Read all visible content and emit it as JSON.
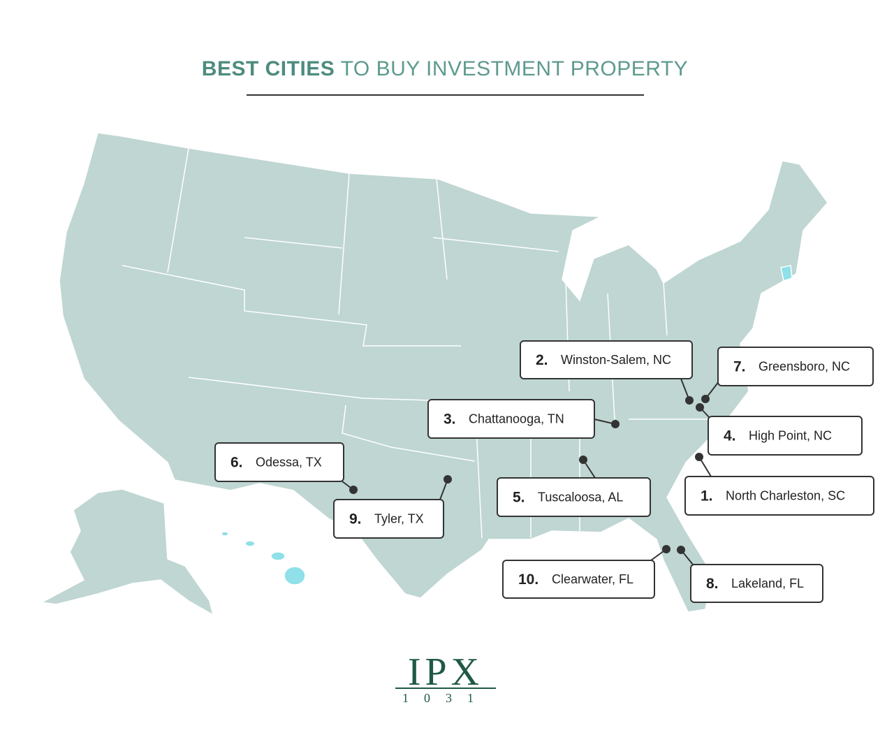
{
  "header": {
    "title_bold": "BEST CITIES",
    "title_rest": "TO BUY INVESTMENT PROPERTY"
  },
  "cities": [
    {
      "rank": "2.",
      "name": "Winston-Salem, NC"
    },
    {
      "rank": "7.",
      "name": "Greensboro, NC"
    },
    {
      "rank": "3.",
      "name": "Chattanooga, TN"
    },
    {
      "rank": "4.",
      "name": "High Point, NC"
    },
    {
      "rank": "6.",
      "name": "Odessa, TX"
    },
    {
      "rank": "5.",
      "name": "Tuscaloosa, AL"
    },
    {
      "rank": "1.",
      "name": "North Charleston, SC"
    },
    {
      "rank": "9.",
      "name": "Tyler, TX"
    },
    {
      "rank": "10.",
      "name": "Clearwater, FL"
    },
    {
      "rank": "8.",
      "name": "Lakeland, FL"
    }
  ],
  "logo": {
    "mark": "IPX",
    "number": "1031"
  }
}
